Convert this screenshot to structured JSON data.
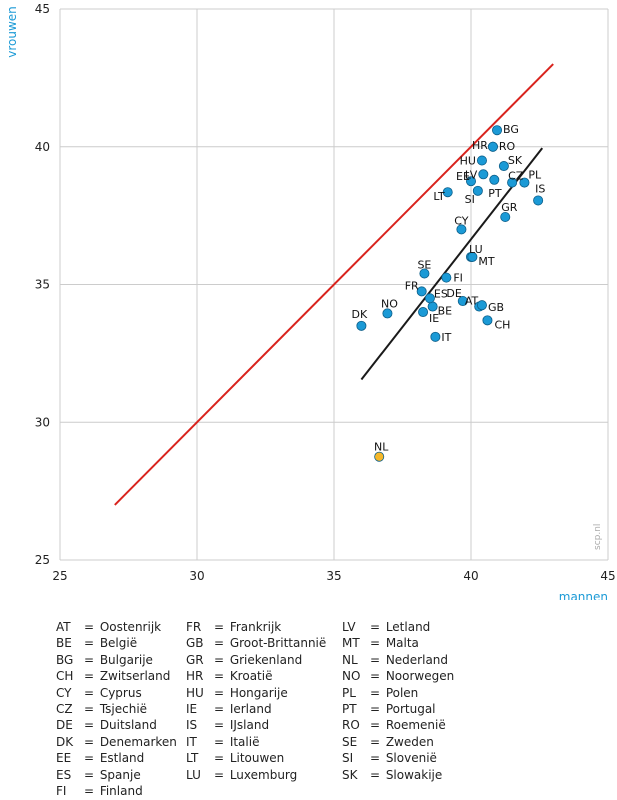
{
  "chart_data": {
    "type": "scatter",
    "xlabel": "mannen",
    "ylabel": "vrouwen",
    "xlim": [
      25,
      45
    ],
    "ylim": [
      25,
      45
    ],
    "xticks": [
      "25",
      "30",
      "35",
      "40",
      "45"
    ],
    "yticks": [
      "25",
      "30",
      "35",
      "40",
      "45"
    ],
    "grid": true,
    "source_note": "scp.nl",
    "colors": {
      "points": "#1b9ad6",
      "highlight": "#f5b72a",
      "diagonal": "#d9231d",
      "trend": "#1a1a1a",
      "axis_text": "#1b9ad6",
      "grid": "#cccccc"
    },
    "diagonal": {
      "x": [
        27,
        43
      ],
      "y": [
        27,
        43
      ]
    },
    "trendline": {
      "x": [
        36,
        42.6
      ],
      "y": [
        31.55,
        39.95
      ]
    },
    "points": [
      {
        "label": "AT",
        "x": 40.3,
        "y": 34.2
      },
      {
        "label": "BE",
        "x": 38.6,
        "y": 34.2
      },
      {
        "label": "BG",
        "x": 40.95,
        "y": 40.6
      },
      {
        "label": "CH",
        "x": 40.6,
        "y": 33.7
      },
      {
        "label": "CY",
        "x": 39.65,
        "y": 37.0
      },
      {
        "label": "CZ",
        "x": 41.5,
        "y": 38.7
      },
      {
        "label": "DE",
        "x": 39.7,
        "y": 34.4
      },
      {
        "label": "DK",
        "x": 36.0,
        "y": 33.5
      },
      {
        "label": "EE",
        "x": 40.0,
        "y": 38.75
      },
      {
        "label": "ES",
        "x": 38.5,
        "y": 34.5
      },
      {
        "label": "FI",
        "x": 39.1,
        "y": 35.25
      },
      {
        "label": "FR",
        "x": 38.2,
        "y": 34.75
      },
      {
        "label": "GB",
        "x": 40.4,
        "y": 34.25
      },
      {
        "label": "GR",
        "x": 41.25,
        "y": 37.45
      },
      {
        "label": "HR",
        "x": 40.8,
        "y": 40.0
      },
      {
        "label": "HU",
        "x": 40.4,
        "y": 39.5
      },
      {
        "label": "IE",
        "x": 38.25,
        "y": 34.0
      },
      {
        "label": "IS",
        "x": 42.45,
        "y": 38.05
      },
      {
        "label": "IT",
        "x": 38.7,
        "y": 33.1
      },
      {
        "label": "LT",
        "x": 39.15,
        "y": 38.35
      },
      {
        "label": "LU",
        "x": 40.0,
        "y": 36.0
      },
      {
        "label": "LV",
        "x": 40.45,
        "y": 39.0
      },
      {
        "label": "MT",
        "x": 40.05,
        "y": 36.0
      },
      {
        "label": "NL",
        "x": 36.65,
        "y": 28.75
      },
      {
        "label": "NO",
        "x": 36.95,
        "y": 33.95
      },
      {
        "label": "PL",
        "x": 41.95,
        "y": 38.7
      },
      {
        "label": "PT",
        "x": 40.85,
        "y": 38.8
      },
      {
        "label": "RO",
        "x": 40.8,
        "y": 40.0
      },
      {
        "label": "SE",
        "x": 38.3,
        "y": 35.4
      },
      {
        "label": "SI",
        "x": 40.25,
        "y": 38.4
      },
      {
        "label": "SK",
        "x": 41.2,
        "y": 39.3
      }
    ]
  },
  "legend": {
    "columns": [
      [
        {
          "code": "AT",
          "name": "Oostenrijk"
        },
        {
          "code": "BE",
          "name": "België"
        },
        {
          "code": "BG",
          "name": "Bulgarije"
        },
        {
          "code": "CH",
          "name": "Zwitserland"
        },
        {
          "code": "CY",
          "name": "Cyprus"
        },
        {
          "code": "CZ",
          "name": "Tsjechië"
        },
        {
          "code": "DE",
          "name": "Duitsland"
        },
        {
          "code": "DK",
          "name": "Denemarken"
        },
        {
          "code": "EE",
          "name": "Estland"
        },
        {
          "code": "ES",
          "name": "Spanje"
        },
        {
          "code": "FI",
          "name": "Finland"
        }
      ],
      [
        {
          "code": "FR",
          "name": "Frankrijk"
        },
        {
          "code": "GB",
          "name": "Groot-Brittannië"
        },
        {
          "code": "GR",
          "name": "Griekenland"
        },
        {
          "code": "HR",
          "name": "Kroatië"
        },
        {
          "code": "HU",
          "name": "Hongarije"
        },
        {
          "code": "IE",
          "name": "Ierland"
        },
        {
          "code": "IS",
          "name": "IJsland"
        },
        {
          "code": "IT",
          "name": "Italië"
        },
        {
          "code": "LT",
          "name": "Litouwen"
        },
        {
          "code": "LU",
          "name": "Luxemburg"
        }
      ],
      [
        {
          "code": "LV",
          "name": "Letland"
        },
        {
          "code": "MT",
          "name": "Malta"
        },
        {
          "code": "NL",
          "name": "Nederland"
        },
        {
          "code": "NO",
          "name": "Noorwegen"
        },
        {
          "code": "PL",
          "name": "Polen"
        },
        {
          "code": "PT",
          "name": "Portugal"
        },
        {
          "code": "RO",
          "name": "Roemenië"
        },
        {
          "code": "SE",
          "name": "Zweden"
        },
        {
          "code": "SI",
          "name": "Slovenië"
        },
        {
          "code": "SK",
          "name": "Slowakije"
        }
      ]
    ]
  }
}
